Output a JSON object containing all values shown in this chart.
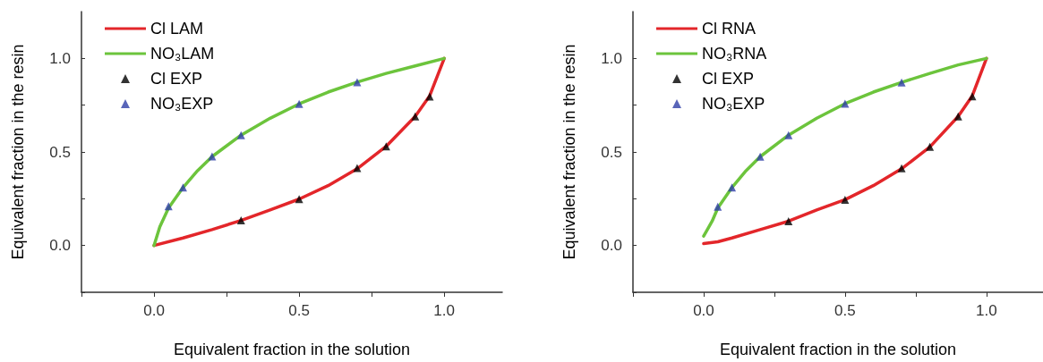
{
  "chart_data": [
    {
      "type": "line",
      "xlabel": "Equivalent fraction in the solution",
      "ylabel": "Equivalent fraction in the resin",
      "xlim": [
        -0.25,
        1.2
      ],
      "ylim": [
        -0.25,
        1.25
      ],
      "xticks": [
        {
          "value": -0.25,
          "label": null
        },
        {
          "value": 0,
          "label": "0.0"
        },
        {
          "value": 0.25,
          "label": null
        },
        0.5,
        {
          "value": 0.75,
          "label": null
        },
        {
          "value": 1,
          "label": "1.0"
        }
      ],
      "yticks": [
        {
          "value": -0.25,
          "label": null
        },
        {
          "value": 0,
          "label": "0.0"
        },
        {
          "value": 0.25,
          "label": null
        },
        0.5,
        {
          "value": 0.75,
          "label": null
        },
        {
          "value": 1,
          "label": "1.0"
        }
      ],
      "grid": false,
      "legend": "top left",
      "series": [
        {
          "name": "Cl LAM",
          "type": "line",
          "marker": "none",
          "color": "#e3262a",
          "x": [
            0,
            0.1,
            0.2,
            0.3,
            0.4,
            0.5,
            0.6,
            0.7,
            0.8,
            0.9,
            0.95,
            1
          ],
          "values": [
            0,
            0.04,
            0.085,
            0.134,
            0.19,
            0.248,
            0.32,
            0.41,
            0.53,
            0.69,
            0.8,
            1
          ]
        },
        {
          "name": "NO₃LAM",
          "type": "line",
          "marker": "none",
          "color": "#6cc43c",
          "x": [
            0,
            0.02,
            0.05,
            0.1,
            0.15,
            0.2,
            0.3,
            0.4,
            0.5,
            0.6,
            0.7,
            0.8,
            0.9,
            1
          ],
          "values": [
            0,
            0.1,
            0.2,
            0.31,
            0.4,
            0.475,
            0.59,
            0.68,
            0.757,
            0.82,
            0.873,
            0.92,
            0.96,
            1
          ]
        },
        {
          "name": "Cl EXP",
          "type": "scatter",
          "marker": "triangle",
          "color": "#000000",
          "x": [
            0.3,
            0.5,
            0.7,
            0.8,
            0.9,
            0.95
          ],
          "values": [
            0.134,
            0.248,
            0.414,
            0.53,
            0.69,
            0.796
          ]
        },
        {
          "name": "NO₃EXP",
          "type": "scatter",
          "marker": "triangle",
          "color": "#2f3fa8",
          "x": [
            0.05,
            0.1,
            0.2,
            0.3,
            0.5,
            0.7
          ],
          "values": [
            0.21,
            0.31,
            0.476,
            0.59,
            0.757,
            0.873
          ]
        }
      ]
    },
    {
      "type": "line",
      "xlabel": "Equivalent fraction in the solution",
      "ylabel": "Equivalent fraction in the resin",
      "xlim": [
        -0.25,
        1.2
      ],
      "ylim": [
        -0.25,
        1.25
      ],
      "xticks": [
        {
          "value": -0.25,
          "label": null
        },
        {
          "value": 0,
          "label": "0.0"
        },
        {
          "value": 0.25,
          "label": null
        },
        0.5,
        {
          "value": 0.75,
          "label": null
        },
        {
          "value": 1,
          "label": "1.0"
        }
      ],
      "yticks": [
        {
          "value": -0.25,
          "label": null
        },
        {
          "value": 0,
          "label": "0.0"
        },
        {
          "value": 0.25,
          "label": null
        },
        0.5,
        {
          "value": 0.75,
          "label": null
        },
        {
          "value": 1,
          "label": "1.0"
        }
      ],
      "grid": false,
      "legend": "top left",
      "series": [
        {
          "name": "Cl RNA",
          "type": "line",
          "marker": "none",
          "color": "#e3262a",
          "x": [
            0,
            0.05,
            0.1,
            0.2,
            0.3,
            0.4,
            0.5,
            0.6,
            0.7,
            0.8,
            0.9,
            0.95,
            1
          ],
          "values": [
            0.01,
            0.02,
            0.04,
            0.085,
            0.13,
            0.19,
            0.245,
            0.32,
            0.41,
            0.527,
            0.69,
            0.8,
            1
          ]
        },
        {
          "name": "NO₃RNA",
          "type": "line",
          "marker": "none",
          "color": "#6cc43c",
          "x": [
            0,
            0.03,
            0.05,
            0.1,
            0.15,
            0.2,
            0.3,
            0.4,
            0.5,
            0.6,
            0.7,
            0.8,
            0.9,
            1
          ],
          "values": [
            0.05,
            0.13,
            0.2,
            0.31,
            0.4,
            0.475,
            0.59,
            0.68,
            0.758,
            0.82,
            0.872,
            0.92,
            0.965,
            1
          ]
        },
        {
          "name": "Cl EXP",
          "type": "scatter",
          "marker": "triangle",
          "color": "#000000",
          "x": [
            0.3,
            0.5,
            0.7,
            0.8,
            0.9,
            0.95
          ],
          "values": [
            0.13,
            0.245,
            0.413,
            0.527,
            0.69,
            0.797
          ]
        },
        {
          "name": "NO₃EXP",
          "type": "scatter",
          "marker": "triangle",
          "color": "#2f3fa8",
          "x": [
            0.05,
            0.1,
            0.2,
            0.3,
            0.5,
            0.7
          ],
          "values": [
            0.207,
            0.31,
            0.475,
            0.59,
            0.758,
            0.872
          ]
        }
      ]
    }
  ]
}
